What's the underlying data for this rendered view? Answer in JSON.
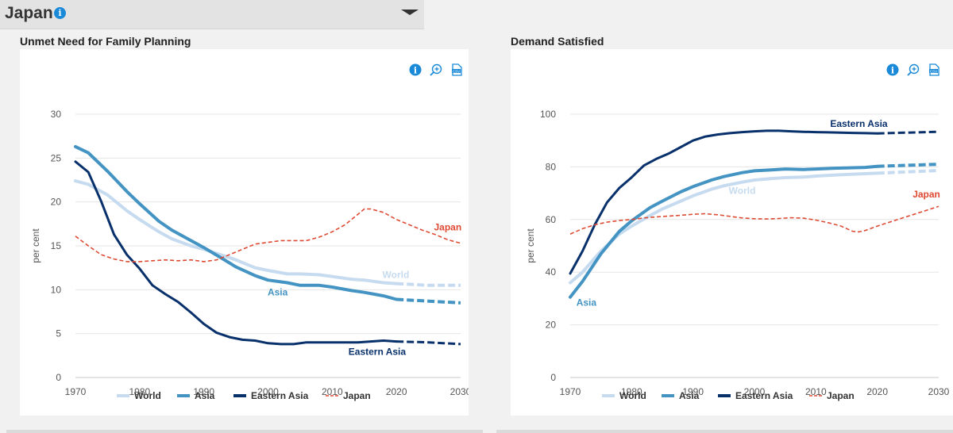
{
  "country": {
    "name": "Japan",
    "info_icon": "info-icon",
    "dropdown_icon": "chevron-down-icon"
  },
  "panels": [
    {
      "title": "Unmet Need for Family Planning",
      "toolbar": [
        "info-icon",
        "zoom-in-icon",
        "csv-export-icon"
      ]
    },
    {
      "title": "Demand Satisfied",
      "toolbar": [
        "info-icon",
        "zoom-in-icon",
        "csv-export-icon"
      ]
    }
  ],
  "colors": {
    "World": "#c6dbef",
    "Asia": "#4393c3",
    "Eastern Asia": "#08306b",
    "Japan": "#de4a33",
    "accent": "#1a8ad8"
  },
  "chart_data": [
    {
      "type": "line",
      "title": "Unmet Need for Family Planning",
      "ylabel": "per cent",
      "xlim": [
        1970,
        2030
      ],
      "ylim": [
        0,
        30
      ],
      "xticks": [
        1970,
        1980,
        1990,
        2000,
        2010,
        2020,
        2030
      ],
      "yticks": [
        0,
        5,
        10,
        15,
        20,
        25,
        30
      ],
      "grid": true,
      "legend": "bottom",
      "projection_start": 2020,
      "series": [
        {
          "name": "World",
          "x": [
            1970,
            1972,
            1975,
            1978,
            1980,
            1983,
            1985,
            1988,
            1990,
            1993,
            1995,
            1998,
            2000,
            2003,
            2005,
            2008,
            2010,
            2013,
            2015,
            2018,
            2020,
            2025,
            2030
          ],
          "y": [
            22.4,
            22.0,
            20.8,
            19.0,
            18.0,
            16.6,
            15.8,
            15.0,
            14.6,
            13.9,
            13.4,
            12.5,
            12.2,
            11.8,
            11.8,
            11.7,
            11.5,
            11.2,
            11.1,
            10.8,
            10.7,
            10.5,
            10.5
          ]
        },
        {
          "name": "Asia",
          "x": [
            1970,
            1972,
            1975,
            1978,
            1980,
            1983,
            1985,
            1988,
            1990,
            1993,
            1995,
            1998,
            2000,
            2003,
            2005,
            2008,
            2010,
            2013,
            2015,
            2018,
            2020,
            2025,
            2030
          ],
          "y": [
            26.3,
            25.6,
            23.5,
            21.2,
            19.8,
            17.8,
            16.8,
            15.6,
            14.8,
            13.5,
            12.6,
            11.6,
            11.1,
            10.8,
            10.5,
            10.5,
            10.3,
            9.9,
            9.7,
            9.3,
            8.9,
            8.7,
            8.5
          ]
        },
        {
          "name": "Eastern Asia",
          "x": [
            1970,
            1972,
            1974,
            1976,
            1978,
            1980,
            1982,
            1984,
            1986,
            1988,
            1990,
            1992,
            1994,
            1996,
            1998,
            2000,
            2002,
            2004,
            2006,
            2008,
            2010,
            2012,
            2014,
            2016,
            2018,
            2020,
            2025,
            2030
          ],
          "y": [
            24.6,
            23.4,
            20.1,
            16.3,
            14.0,
            12.4,
            10.5,
            9.5,
            8.6,
            7.4,
            6.1,
            5.1,
            4.6,
            4.3,
            4.2,
            3.9,
            3.8,
            3.8,
            4.0,
            4.0,
            4.0,
            4.0,
            4.0,
            4.1,
            4.2,
            4.1,
            4.0,
            3.8
          ]
        },
        {
          "name": "Japan",
          "x": [
            1970,
            1972,
            1974,
            1976,
            1978,
            1980,
            1982,
            1984,
            1986,
            1988,
            1990,
            1992,
            1994,
            1996,
            1998,
            2000,
            2002,
            2004,
            2006,
            2008,
            2010,
            2012,
            2014,
            2015,
            2016,
            2017,
            2018,
            2020,
            2022,
            2024,
            2026,
            2028,
            2030
          ],
          "y": [
            16.1,
            15.0,
            14.0,
            13.5,
            13.2,
            13.2,
            13.3,
            13.4,
            13.3,
            13.4,
            13.2,
            13.4,
            14.0,
            14.6,
            15.2,
            15.4,
            15.6,
            15.6,
            15.6,
            16.0,
            16.6,
            17.4,
            18.6,
            19.2,
            19.2,
            19.0,
            18.8,
            18.0,
            17.4,
            16.8,
            16.3,
            15.7,
            15.3
          ]
        }
      ],
      "annotations": [
        {
          "text": "World",
          "series": "World"
        },
        {
          "text": "Asia",
          "series": "Asia"
        },
        {
          "text": "Eastern Asia",
          "series": "Eastern Asia"
        },
        {
          "text": "Japan",
          "series": "Japan"
        }
      ]
    },
    {
      "type": "line",
      "title": "Demand Satisfied",
      "ylabel": "per cent",
      "xlim": [
        1970,
        2030
      ],
      "ylim": [
        0,
        100
      ],
      "xticks": [
        1970,
        1980,
        1990,
        2000,
        2010,
        2020,
        2030
      ],
      "yticks": [
        0,
        20,
        40,
        60,
        80,
        100
      ],
      "grid": true,
      "legend": "bottom",
      "projection_start": 2020,
      "series": [
        {
          "name": "World",
          "x": [
            1970,
            1972,
            1975,
            1978,
            1980,
            1983,
            1985,
            1988,
            1990,
            1993,
            1995,
            1998,
            2000,
            2003,
            2005,
            2008,
            2010,
            2013,
            2015,
            2018,
            2020,
            2025,
            2030
          ],
          "y": [
            36.0,
            40.0,
            48.0,
            54.5,
            57.5,
            61.5,
            64.0,
            67.0,
            69.0,
            71.5,
            72.8,
            74.2,
            75.0,
            75.6,
            75.9,
            76.1,
            76.5,
            76.9,
            77.1,
            77.4,
            77.6,
            78.1,
            78.6
          ]
        },
        {
          "name": "Asia",
          "x": [
            1970,
            1972,
            1975,
            1978,
            1980,
            1983,
            1985,
            1988,
            1990,
            1993,
            1995,
            1998,
            2000,
            2003,
            2005,
            2008,
            2010,
            2013,
            2015,
            2018,
            2020,
            2025,
            2030
          ],
          "y": [
            30.5,
            36.5,
            47.0,
            55.5,
            59.5,
            64.5,
            67.0,
            70.5,
            72.5,
            75.0,
            76.3,
            77.8,
            78.5,
            78.9,
            79.2,
            79.0,
            79.2,
            79.5,
            79.6,
            79.8,
            80.2,
            80.6,
            81.0
          ]
        },
        {
          "name": "Eastern Asia",
          "x": [
            1970,
            1972,
            1974,
            1976,
            1978,
            1980,
            1982,
            1984,
            1986,
            1988,
            1990,
            1992,
            1994,
            1996,
            1998,
            2000,
            2002,
            2004,
            2006,
            2008,
            2010,
            2012,
            2014,
            2016,
            2018,
            2020,
            2025,
            2030
          ],
          "y": [
            39.5,
            48.0,
            58.0,
            66.5,
            72.0,
            76.0,
            80.5,
            83.0,
            85.0,
            87.5,
            90.0,
            91.5,
            92.3,
            92.8,
            93.2,
            93.5,
            93.7,
            93.7,
            93.5,
            93.3,
            93.2,
            93.1,
            93.0,
            92.9,
            92.8,
            92.7,
            93.0,
            93.3
          ]
        },
        {
          "name": "Japan",
          "x": [
            1970,
            1972,
            1974,
            1976,
            1978,
            1980,
            1982,
            1984,
            1986,
            1988,
            1990,
            1992,
            1994,
            1996,
            1998,
            2000,
            2002,
            2004,
            2006,
            2008,
            2010,
            2012,
            2014,
            2016,
            2017,
            2018,
            2020,
            2022,
            2024,
            2026,
            2028,
            2030
          ],
          "y": [
            54.5,
            56.5,
            58.0,
            59.0,
            59.6,
            60.0,
            60.6,
            61.0,
            61.3,
            61.6,
            62.0,
            62.2,
            61.8,
            61.2,
            60.6,
            60.3,
            60.2,
            60.4,
            60.7,
            60.5,
            59.8,
            58.8,
            57.6,
            55.5,
            55.3,
            55.8,
            57.5,
            59.0,
            60.5,
            62.0,
            63.5,
            65.0
          ]
        }
      ],
      "annotations": [
        {
          "text": "Eastern Asia",
          "series": "Eastern Asia"
        },
        {
          "text": "World",
          "series": "World"
        },
        {
          "text": "Japan",
          "series": "Japan"
        },
        {
          "text": "Asia",
          "series": "Asia"
        }
      ]
    }
  ]
}
